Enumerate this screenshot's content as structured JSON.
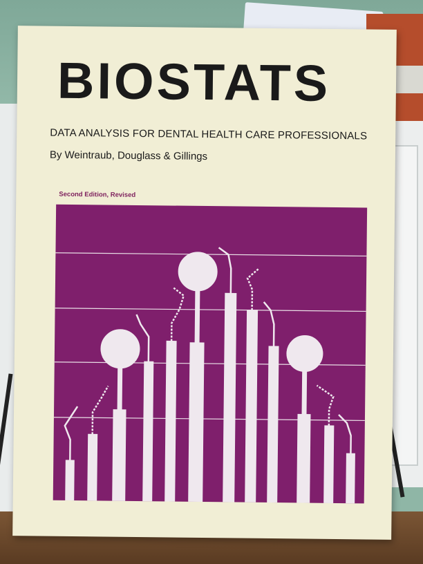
{
  "book": {
    "title": "BIOSTATS",
    "subtitle": "DATA ANALYSIS FOR DENTAL HEALTH CARE PROFESSIONALS",
    "authors": "By Weintraub, Douglass & Gillings",
    "edition": "Second Edition, Revised"
  },
  "colors": {
    "cover": "#f1eed5",
    "art_background": "#7f1f6c",
    "edition_text": "#7d1f5c"
  },
  "illustration": {
    "subject": "dental instruments as bar chart"
  }
}
